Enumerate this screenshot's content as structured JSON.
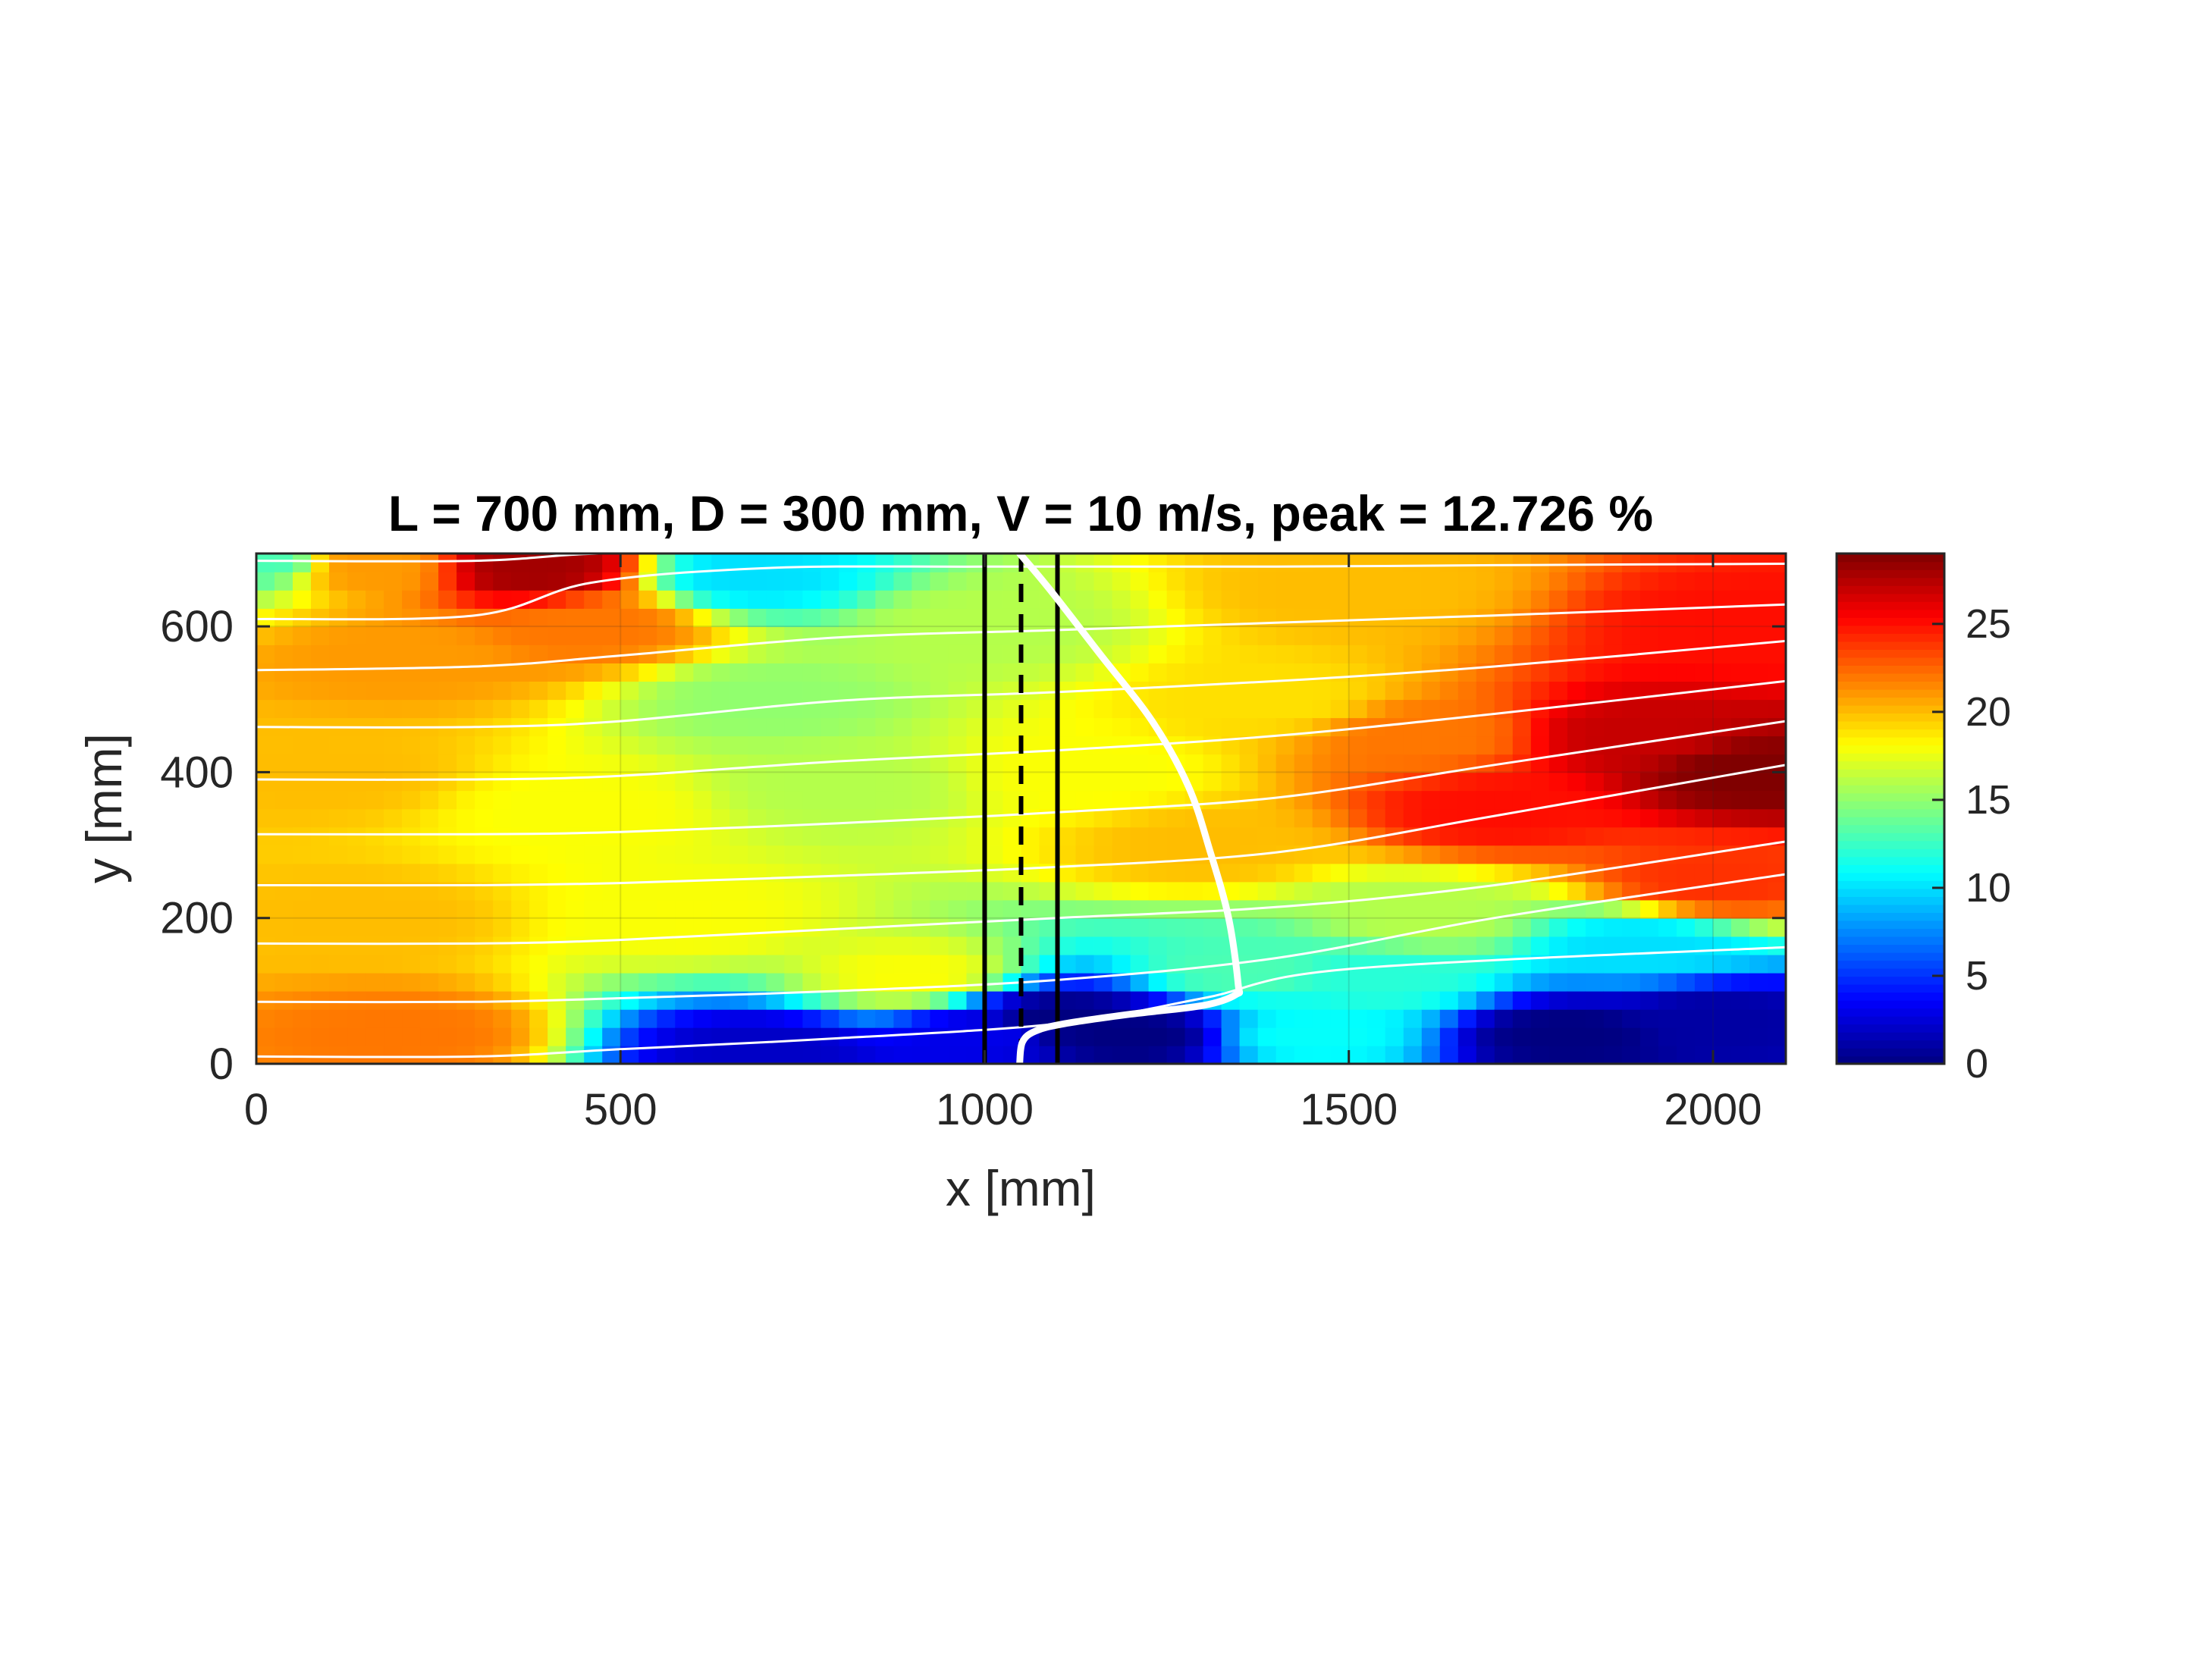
{
  "chart_data": {
    "type": "heatmap",
    "title": "L = 700 mm, D = 300 mm, V = 10 m/s, peak = 12.726 %",
    "xlabel": "x [mm]",
    "ylabel": "y [mm]",
    "xlim": [
      0,
      2100
    ],
    "ylim": [
      0,
      700
    ],
    "xticks": [
      0,
      500,
      1000,
      1500,
      2000
    ],
    "yticks": [
      0,
      200,
      400,
      600
    ],
    "grid": true,
    "colormap": "jet",
    "colorbar": {
      "min": 0,
      "max": 29,
      "ticks": [
        0,
        5,
        10,
        15,
        20,
        25
      ]
    },
    "field_anchors": [
      {
        "x": 0,
        "y": 690,
        "v": 13
      },
      {
        "x": 150,
        "y": 680,
        "v": 21
      },
      {
        "x": 380,
        "y": 680,
        "v": 28
      },
      {
        "x": 460,
        "y": 600,
        "v": 22
      },
      {
        "x": 200,
        "y": 560,
        "v": 21
      },
      {
        "x": 100,
        "y": 400,
        "v": 20
      },
      {
        "x": 150,
        "y": 200,
        "v": 20
      },
      {
        "x": 200,
        "y": 40,
        "v": 22
      },
      {
        "x": 450,
        "y": 350,
        "v": 18
      },
      {
        "x": 680,
        "y": 670,
        "v": 10
      },
      {
        "x": 700,
        "y": 500,
        "v": 15
      },
      {
        "x": 800,
        "y": 380,
        "v": 16
      },
      {
        "x": 600,
        "y": 200,
        "v": 18
      },
      {
        "x": 900,
        "y": 120,
        "v": 18
      },
      {
        "x": 1100,
        "y": 60,
        "v": 0
      },
      {
        "x": 1200,
        "y": 40,
        "v": 0
      },
      {
        "x": 1000,
        "y": 600,
        "v": 16
      },
      {
        "x": 1150,
        "y": 400,
        "v": 18
      },
      {
        "x": 1300,
        "y": 300,
        "v": 20
      },
      {
        "x": 1400,
        "y": 500,
        "v": 19
      },
      {
        "x": 1500,
        "y": 650,
        "v": 20
      },
      {
        "x": 1600,
        "y": 450,
        "v": 22
      },
      {
        "x": 1700,
        "y": 350,
        "v": 25
      },
      {
        "x": 1900,
        "y": 450,
        "v": 27
      },
      {
        "x": 2050,
        "y": 400,
        "v": 29
      },
      {
        "x": 2050,
        "y": 600,
        "v": 25
      },
      {
        "x": 2000,
        "y": 250,
        "v": 24
      },
      {
        "x": 1450,
        "y": 40,
        "v": 11
      },
      {
        "x": 1550,
        "y": 120,
        "v": 12
      },
      {
        "x": 1800,
        "y": 40,
        "v": 0
      },
      {
        "x": 2000,
        "y": 60,
        "v": 1
      },
      {
        "x": 1900,
        "y": 160,
        "v": 10
      },
      {
        "x": 1600,
        "y": 200,
        "v": 16
      },
      {
        "x": 1350,
        "y": 130,
        "v": 13
      },
      {
        "x": 1000,
        "y": 40,
        "v": 3
      },
      {
        "x": 700,
        "y": 20,
        "v": 2
      }
    ],
    "streamlines": [
      {
        "x": [
          0,
          300,
          470,
          700,
          1000,
          1400,
          1700,
          2100
        ],
        "y": [
          690,
          690,
          700,
          700,
          700,
          700,
          700,
          700
        ]
      },
      {
        "x": [
          0,
          300,
          460,
          700,
          1000,
          1400,
          1700,
          2100
        ],
        "y": [
          610,
          615,
          660,
          680,
          682,
          682,
          684,
          686
        ]
      },
      {
        "x": [
          0,
          300,
          500,
          800,
          1100,
          1400,
          1700,
          2100
        ],
        "y": [
          540,
          545,
          560,
          585,
          595,
          605,
          615,
          630
        ]
      },
      {
        "x": [
          0,
          300,
          500,
          800,
          1100,
          1400,
          1700,
          2100
        ],
        "y": [
          462,
          462,
          470,
          498,
          510,
          525,
          545,
          580
        ]
      },
      {
        "x": [
          0,
          300,
          500,
          800,
          1100,
          1400,
          1700,
          2100
        ],
        "y": [
          390,
          390,
          395,
          415,
          430,
          450,
          480,
          525
        ]
      },
      {
        "x": [
          0,
          300,
          500,
          800,
          1100,
          1400,
          1700,
          2100
        ],
        "y": [
          315,
          315,
          318,
          330,
          345,
          365,
          410,
          470
        ]
      },
      {
        "x": [
          0,
          300,
          500,
          800,
          1100,
          1400,
          1700,
          2100
        ],
        "y": [
          245,
          245,
          248,
          258,
          270,
          290,
          340,
          410
        ]
      },
      {
        "x": [
          0,
          300,
          500,
          800,
          1100,
          1400,
          1700,
          2100
        ],
        "y": [
          165,
          165,
          170,
          185,
          200,
          215,
          245,
          305
        ]
      },
      {
        "x": [
          0,
          300,
          500,
          800,
          1100,
          1400,
          1700,
          2100
        ],
        "y": [
          85,
          85,
          90,
          100,
          115,
          145,
          200,
          260
        ]
      },
      {
        "x": [
          0,
          300,
          500,
          800,
          1100,
          1300,
          1500,
          2100
        ],
        "y": [
          10,
          10,
          20,
          35,
          55,
          90,
          130,
          160
        ]
      }
    ],
    "profile_curve": {
      "x": [
        1048,
        1090,
        1160,
        1230,
        1280,
        1310,
        1335,
        1348,
        1345,
        1300,
        1200,
        1110,
        1070,
        1052,
        1048
      ],
      "y": [
        700,
        650,
        560,
        470,
        380,
        290,
        200,
        110,
        95,
        80,
        68,
        55,
        45,
        30,
        0
      ]
    },
    "vertical_lines": [
      {
        "x": 1000,
        "style": "solid"
      },
      {
        "x": 1050,
        "style": "dashed"
      },
      {
        "x": 1100,
        "style": "solid"
      }
    ]
  }
}
